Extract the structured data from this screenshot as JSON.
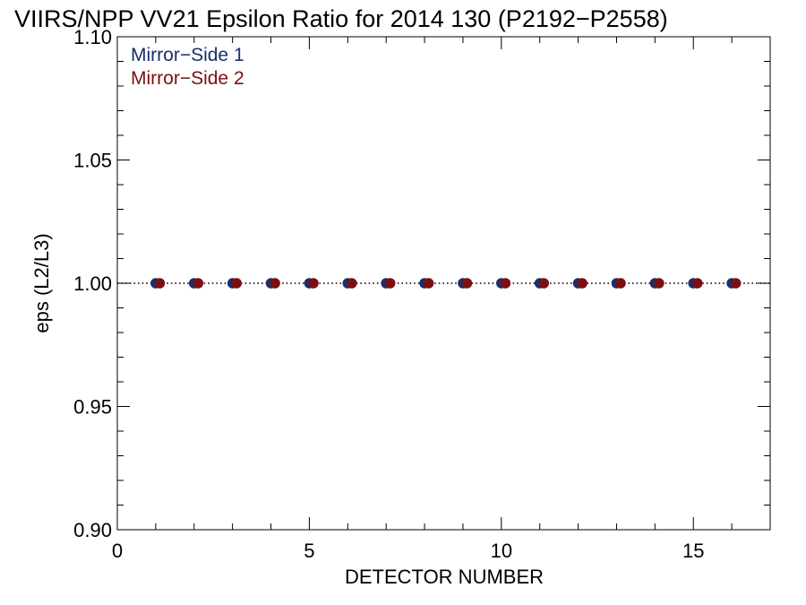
{
  "chart_data": {
    "type": "scatter",
    "title": "VIIRS/NPP VV21 Epsilon Ratio for 2014 130 (P2192−P2558)",
    "xlabel": "DETECTOR NUMBER",
    "ylabel": "eps (L2/L3)",
    "xlim": [
      0,
      17
    ],
    "ylim": [
      0.9,
      1.1
    ],
    "x_ticks": [
      "0",
      "5",
      "10",
      "15"
    ],
    "y_ticks": [
      "0.90",
      "0.95",
      "1.00",
      "1.05",
      "1.10"
    ],
    "reference_line": {
      "y": 1.0,
      "style": "dotted"
    },
    "legend_position": "top-left",
    "grid": false,
    "series": [
      {
        "name": "Mirror−Side 1",
        "color": "#1a2f6e",
        "x": [
          1,
          2,
          3,
          4,
          5,
          6,
          7,
          8,
          9,
          10,
          11,
          12,
          13,
          14,
          15,
          16
        ],
        "y": [
          1.0,
          1.0,
          1.0,
          1.0,
          1.0,
          1.0,
          1.0,
          1.0,
          1.0,
          1.0,
          1.0,
          1.0,
          1.0,
          1.0,
          1.0,
          1.0
        ]
      },
      {
        "name": "Mirror−Side 2",
        "color": "#7a1010",
        "x": [
          1,
          2,
          3,
          4,
          5,
          6,
          7,
          8,
          9,
          10,
          11,
          12,
          13,
          14,
          15,
          16
        ],
        "y": [
          1.0,
          1.0,
          1.0,
          1.0,
          1.0,
          1.0,
          1.0,
          1.0,
          1.0,
          1.0,
          1.0,
          1.0,
          1.0,
          1.0,
          1.0,
          1.0
        ]
      }
    ]
  }
}
